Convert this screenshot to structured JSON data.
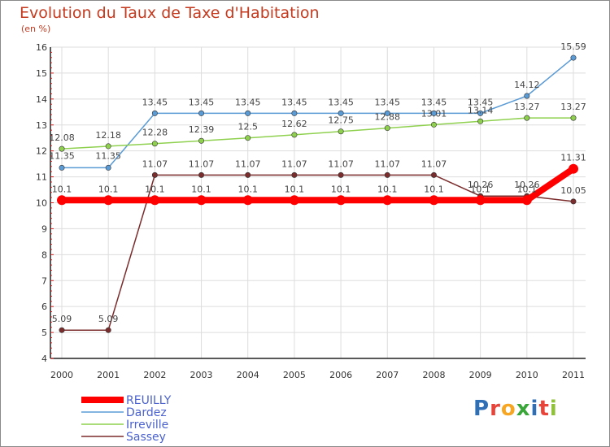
{
  "title": "Evolution du Taux de Taxe d'Habitation",
  "unit_label": "(en %)",
  "logo": {
    "text": "Proxiti",
    "colors": [
      "#2f6fb6",
      "#e8443a",
      "#f6a623",
      "#3aa63a",
      "#2f6fb6",
      "#e8443a",
      "#8fc13a"
    ]
  },
  "chart_data": {
    "type": "line",
    "x": [
      "2000",
      "2001",
      "2002",
      "2003",
      "2004",
      "2005",
      "2006",
      "2007",
      "2008",
      "2009",
      "2010",
      "2011"
    ],
    "ylim": [
      4,
      16
    ],
    "yticks": [
      4,
      5,
      6,
      7,
      8,
      9,
      10,
      11,
      12,
      13,
      14,
      15,
      16
    ],
    "grid": true,
    "legend_position": "bottom-left",
    "series": [
      {
        "name": "REUILLY",
        "color": "#ff0000",
        "values": [
          10.1,
          10.1,
          10.1,
          10.1,
          10.1,
          10.1,
          10.1,
          10.1,
          10.1,
          10.1,
          10.1,
          11.31
        ],
        "labels": [
          "10.1",
          "10.1",
          "10.1",
          "10.1",
          "10.1",
          "10.1",
          "10.1",
          "10.1",
          "10.1",
          "10.1",
          "10.1",
          "11.31"
        ]
      },
      {
        "name": "Dardez",
        "color": "#5b9bd5",
        "values": [
          11.35,
          11.35,
          13.45,
          13.45,
          13.45,
          13.45,
          13.45,
          13.45,
          13.45,
          13.45,
          14.12,
          15.59
        ],
        "labels": [
          "11.35",
          "11.35",
          "13.45",
          "13.45",
          "13.45",
          "13.45",
          "13.45",
          "13.45",
          "13.45",
          "13.45",
          "14.12",
          "15.59"
        ]
      },
      {
        "name": "Irreville",
        "color": "#8fd14f",
        "values": [
          12.08,
          12.18,
          12.28,
          12.39,
          12.5,
          12.62,
          12.75,
          12.88,
          13.01,
          13.14,
          13.27,
          13.27
        ],
        "labels": [
          "12.08",
          "12.18",
          "12.28",
          "12.39",
          "12.5",
          "12.62",
          "12.75",
          "12.88",
          "13.01",
          "13.14",
          "13.27",
          "13.27"
        ]
      },
      {
        "name": "Sassey",
        "color": "#7b2c2c",
        "values": [
          5.09,
          5.09,
          11.07,
          11.07,
          11.07,
          11.07,
          11.07,
          11.07,
          11.07,
          10.26,
          10.26,
          10.05
        ],
        "labels": [
          "5.09",
          "5.09",
          "11.07",
          "11.07",
          "11.07",
          "11.07",
          "11.07",
          "11.07",
          "11.07",
          "10.26",
          "10.26",
          "10.05"
        ]
      }
    ]
  }
}
